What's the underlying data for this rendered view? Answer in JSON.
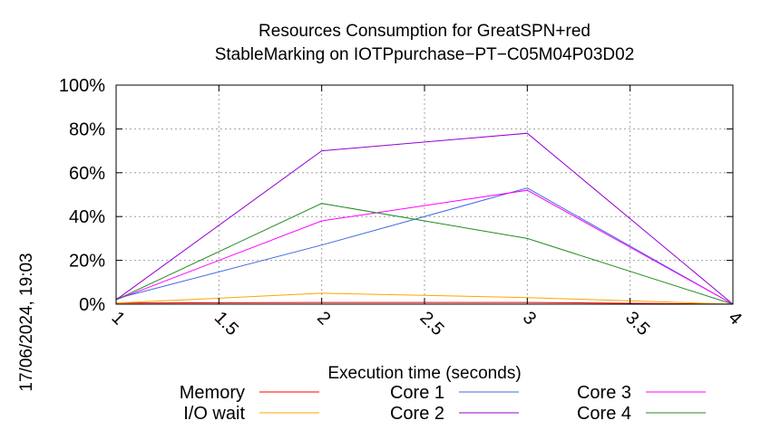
{
  "chart_data": {
    "type": "line",
    "title": [
      "Resources Consumption for GreatSPN+red",
      "StableMarking on IOTPpurchase−PT−C05M04P03D02"
    ],
    "xlabel": "Execution time (seconds)",
    "ylabel": "",
    "timestamp": "17/06/2024, 19:03",
    "xlim": [
      1,
      4
    ],
    "ylim": [
      0,
      100
    ],
    "x_ticks": [
      1,
      1.5,
      2,
      2.5,
      3,
      3.5,
      4
    ],
    "x_tick_labels": [
      "1",
      "1.5",
      "2",
      "2.5",
      "3",
      "3.5",
      "4"
    ],
    "y_ticks": [
      0,
      20,
      40,
      60,
      80,
      100
    ],
    "y_tick_labels": [
      "0%",
      "20%",
      "40%",
      "60%",
      "80%",
      "100%"
    ],
    "grid": true,
    "legend_position": "bottom",
    "x": [
      1,
      2,
      3,
      4
    ],
    "series": [
      {
        "name": "Memory",
        "color": "#ff0000",
        "values": [
          0.5,
          0.8,
          0.8,
          0
        ]
      },
      {
        "name": "I/O wait",
        "color": "#ffa500",
        "values": [
          0.5,
          5,
          3,
          0
        ]
      },
      {
        "name": "Core 1",
        "color": "#4169e1",
        "values": [
          2.5,
          27,
          53,
          0
        ]
      },
      {
        "name": "Core 2",
        "color": "#9400d3",
        "values": [
          2,
          70,
          78,
          0
        ]
      },
      {
        "name": "Core 3",
        "color": "#ff00ff",
        "values": [
          2,
          38,
          52,
          0
        ]
      },
      {
        "name": "Core 4",
        "color": "#228b22",
        "values": [
          2,
          46,
          30,
          0
        ]
      }
    ]
  }
}
